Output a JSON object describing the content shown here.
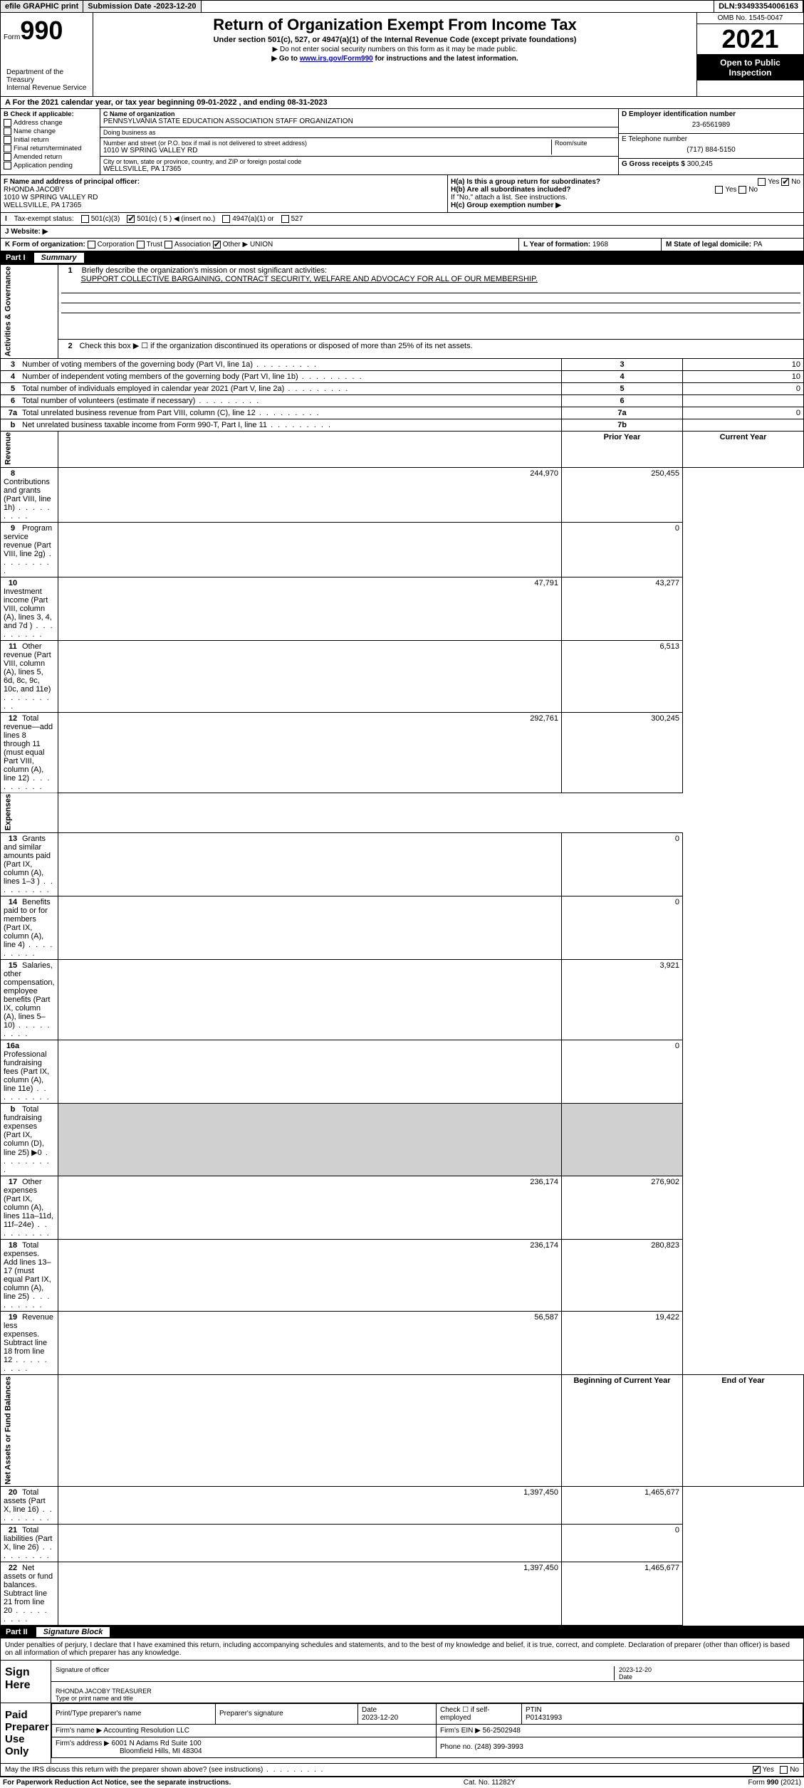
{
  "topbar": {
    "efile_btn": "efile GRAPHIC print",
    "sub_label": "Submission Date - ",
    "sub_date": "2023-12-20",
    "dln_label": "DLN: ",
    "dln": "93493354006163"
  },
  "formhead": {
    "form_word": "Form",
    "form_num": "990",
    "title": "Return of Organization Exempt From Income Tax",
    "sub": "Under section 501(c), 527, or 4947(a)(1) of the Internal Revenue Code (except private foundations)",
    "note1": "▶ Do not enter social security numbers on this form as it may be made public.",
    "note2_pre": "▶ Go to ",
    "note2_link": "www.irs.gov/Form990",
    "note2_post": " for instructions and the latest information.",
    "dept": "Department of the Treasury\nInternal Revenue Service",
    "omb": "OMB No. 1545-0047",
    "taxyear": "2021",
    "open": "Open to Public Inspection"
  },
  "period": {
    "label_a": "A For the 2021 calendar year, or tax year beginning ",
    "begin": "09-01-2022",
    "mid": " , and ending ",
    "end": "08-31-2023"
  },
  "secB": {
    "b_label": "B Check if applicable:",
    "opts": [
      "Address change",
      "Name change",
      "Initial return",
      "Final return/terminated",
      "Amended return",
      "Application pending"
    ],
    "c_label": "C Name of organization",
    "org_name": "PENNSYLVANIA STATE EDUCATION ASSOCIATION STAFF ORGANIZATION",
    "dba_label": "Doing business as",
    "dba": "",
    "addr_label": "Number and street (or P.O. box if mail is not delivered to street address)",
    "room_label": "Room/suite",
    "addr": "1010 W SPRING VALLEY RD",
    "city_label": "City or town, state or province, country, and ZIP or foreign postal code",
    "city": "WELLSVILLE, PA  17365",
    "d_label": "D Employer identification number",
    "ein": "23-6561989",
    "e_label": "E Telephone number",
    "phone": "(717) 884-5150",
    "g_label": "G Gross receipts $ ",
    "gross": "300,245"
  },
  "secF": {
    "f_label": "F Name and address of principal officer:",
    "officer_name": "RHONDA JACOBY",
    "officer_addr1": "1010 W SPRING VALLEY RD",
    "officer_addr2": "WELLSVILLE, PA  17365",
    "ha": "H(a)  Is this a group return for subordinates?",
    "hb": "H(b)  Are all subordinates included?",
    "hb_note": "If \"No,\" attach a list. See instructions.",
    "hc": "H(c)  Group exemption number ▶",
    "yes": "Yes",
    "no": "No"
  },
  "taxexempt": {
    "i_label": "I",
    "label": "Tax-exempt status:",
    "c3": "501(c)(3)",
    "c": "501(c) ( 5 ) ◀ (insert no.)",
    "a1": "4947(a)(1) or",
    "s527": "527"
  },
  "website": {
    "j_label": "J",
    "label": "Website: ▶",
    "value": ""
  },
  "kline": {
    "k_label": "K Form of organization:",
    "opts": [
      "Corporation",
      "Trust",
      "Association"
    ],
    "other_label": "Other ▶",
    "other_val": "UNION",
    "l_label": "L Year of formation: ",
    "l_val": "1968",
    "m_label": "M State of legal domicile: ",
    "m_val": "PA"
  },
  "part1": {
    "hdr_num": "Part I",
    "hdr_title": "Summary",
    "q1_label": "1",
    "q1_text": "Briefly describe the organization's mission or most significant activities:",
    "q1_val": "SUPPORT COLLECTIVE BARGAINING, CONTRACT SECURITY, WELFARE AND ADVOCACY FOR ALL OF OUR MEMBERSHIP.",
    "q2_label": "2",
    "q2_text": "Check this box ▶ ☐  if the organization discontinued its operations or disposed of more than 25% of its net assets.",
    "side_ag": "Activities & Governance",
    "side_rev": "Revenue",
    "side_exp": "Expenses",
    "side_na": "Net Assets or Fund Balances",
    "rows_ag": [
      {
        "n": "3",
        "t": "Number of voting members of the governing body (Part VI, line 1a)",
        "box": "3",
        "v": "10"
      },
      {
        "n": "4",
        "t": "Number of independent voting members of the governing body (Part VI, line 1b)",
        "box": "4",
        "v": "10"
      },
      {
        "n": "5",
        "t": "Total number of individuals employed in calendar year 2021 (Part V, line 2a)",
        "box": "5",
        "v": "0"
      },
      {
        "n": "6",
        "t": "Total number of volunteers (estimate if necessary)",
        "box": "6",
        "v": ""
      },
      {
        "n": "7a",
        "t": "Total unrelated business revenue from Part VIII, column (C), line 12",
        "box": "7a",
        "v": "0"
      },
      {
        "n": "b",
        "t": "Net unrelated business taxable income from Form 990-T, Part I, line 11",
        "box": "7b",
        "v": ""
      }
    ],
    "col_prior": "Prior Year",
    "col_curr": "Current Year",
    "rows_rev": [
      {
        "n": "8",
        "t": "Contributions and grants (Part VIII, line 1h)",
        "p": "244,970",
        "c": "250,455"
      },
      {
        "n": "9",
        "t": "Program service revenue (Part VIII, line 2g)",
        "p": "",
        "c": "0"
      },
      {
        "n": "10",
        "t": "Investment income (Part VIII, column (A), lines 3, 4, and 7d )",
        "p": "47,791",
        "c": "43,277"
      },
      {
        "n": "11",
        "t": "Other revenue (Part VIII, column (A), lines 5, 6d, 8c, 9c, 10c, and 11e)",
        "p": "",
        "c": "6,513"
      },
      {
        "n": "12",
        "t": "Total revenue—add lines 8 through 11 (must equal Part VIII, column (A), line 12)",
        "p": "292,761",
        "c": "300,245"
      }
    ],
    "rows_exp": [
      {
        "n": "13",
        "t": "Grants and similar amounts paid (Part IX, column (A), lines 1–3 )",
        "p": "",
        "c": "0"
      },
      {
        "n": "14",
        "t": "Benefits paid to or for members (Part IX, column (A), line 4)",
        "p": "",
        "c": "0"
      },
      {
        "n": "15",
        "t": "Salaries, other compensation, employee benefits (Part IX, column (A), lines 5–10)",
        "p": "",
        "c": "3,921"
      },
      {
        "n": "16a",
        "t": "Professional fundraising fees (Part IX, column (A), line 11e)",
        "p": "",
        "c": "0"
      },
      {
        "n": "b",
        "t": "Total fundraising expenses (Part IX, column (D), line 25) ▶0",
        "p": "SHADE",
        "c": "SHADE"
      },
      {
        "n": "17",
        "t": "Other expenses (Part IX, column (A), lines 11a–11d, 11f–24e)",
        "p": "236,174",
        "c": "276,902"
      },
      {
        "n": "18",
        "t": "Total expenses. Add lines 13–17 (must equal Part IX, column (A), line 25)",
        "p": "236,174",
        "c": "280,823"
      },
      {
        "n": "19",
        "t": "Revenue less expenses. Subtract line 18 from line 12",
        "p": "56,587",
        "c": "19,422"
      }
    ],
    "col_boy": "Beginning of Current Year",
    "col_eoy": "End of Year",
    "rows_na": [
      {
        "n": "20",
        "t": "Total assets (Part X, line 16)",
        "p": "1,397,450",
        "c": "1,465,677"
      },
      {
        "n": "21",
        "t": "Total liabilities (Part X, line 26)",
        "p": "",
        "c": "0"
      },
      {
        "n": "22",
        "t": "Net assets or fund balances. Subtract line 21 from line 20",
        "p": "1,397,450",
        "c": "1,465,677"
      }
    ]
  },
  "part2": {
    "hdr_num": "Part II",
    "hdr_title": "Signature Block",
    "decl": "Under penalties of perjury, I declare that I have examined this return, including accompanying schedules and statements, and to the best of my knowledge and belief, it is true, correct, and complete. Declaration of preparer (other than officer) is based on all information of which preparer has any knowledge.",
    "sign_here": "Sign Here",
    "sig_of_officer": "Signature of officer",
    "sig_date_label": "Date",
    "sig_date": "2023-12-20",
    "officer_name_title": "RHONDA JACOBY TREASURER",
    "type_label": "Type or print name and title",
    "paid_label": "Paid Preparer Use Only",
    "prep_name_label": "Print/Type preparer's name",
    "prep_sig_label": "Preparer's signature",
    "prep_date_label": "Date",
    "prep_date": "2023-12-20",
    "check_if": "Check ☐ if self-employed",
    "ptin_label": "PTIN",
    "ptin": "P01431993",
    "firm_name_label": "Firm's name    ▶ ",
    "firm_name": "Accounting Resolution LLC",
    "firm_ein_label": "Firm's EIN ▶ ",
    "firm_ein": "56-2502948",
    "firm_addr_label": "Firm's address ▶ ",
    "firm_addr1": "6001 N Adams Rd Suite 100",
    "firm_addr2": "Bloomfield Hills, MI  48304",
    "firm_phone_label": "Phone no. ",
    "firm_phone": "(248) 399-3993",
    "discuss": "May the IRS discuss this return with the preparer shown above? (see instructions)",
    "yes": "Yes",
    "no": "No"
  },
  "footer": {
    "left": "For Paperwork Reduction Act Notice, see the separate instructions.",
    "mid": "Cat. No. 11282Y",
    "right": "Form 990 (2021)"
  }
}
